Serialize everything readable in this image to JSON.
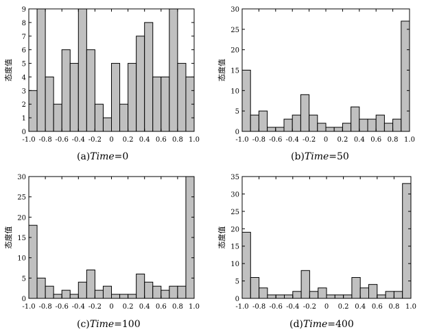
{
  "chart_data": [
    {
      "type": "bar",
      "title": "",
      "ylabel": "态度值",
      "xlabel": "",
      "xlim": [
        -1.0,
        1.0
      ],
      "ylim": [
        0,
        9
      ],
      "yticks": [
        0,
        1,
        2,
        3,
        4,
        5,
        6,
        7,
        8,
        9
      ],
      "xticks": [
        "-1.0",
        "-0.8",
        "-0.6",
        "-0.4",
        "-0.2",
        "0",
        "0.2",
        "0.4",
        "0.6",
        "0.8",
        "1.0"
      ],
      "bin_edges_start": -0.95,
      "bin_width": 0.1,
      "values": [
        3,
        9,
        4,
        2,
        6,
        5,
        9,
        6,
        2,
        1,
        5,
        2,
        5,
        7,
        8,
        4,
        4,
        9,
        5,
        4
      ],
      "caption": {
        "label": "(a)",
        "var": "Time",
        "value": "=0"
      }
    },
    {
      "type": "bar",
      "title": "",
      "ylabel": "态度值",
      "xlabel": "",
      "xlim": [
        -1.0,
        1.0
      ],
      "ylim": [
        0,
        30
      ],
      "yticks": [
        0,
        5,
        10,
        15,
        20,
        25,
        30
      ],
      "xticks": [
        "-1.0",
        "-0.8",
        "-0.6",
        "-0.4",
        "-0.2",
        "0",
        "0.2",
        "0.4",
        "0.6",
        "0.8",
        "1.0"
      ],
      "bin_edges_start": -0.95,
      "bin_width": 0.1,
      "values": [
        15,
        4,
        5,
        1,
        1,
        3,
        4,
        9,
        4,
        2,
        1,
        1,
        2,
        6,
        3,
        3,
        4,
        2,
        3,
        27
      ],
      "caption": {
        "label": "(b)",
        "var": "Time",
        "value": "=50"
      }
    },
    {
      "type": "bar",
      "title": "",
      "ylabel": "态度值",
      "xlabel": "",
      "xlim": [
        -1.0,
        1.0
      ],
      "ylim": [
        0,
        30
      ],
      "yticks": [
        0,
        5,
        10,
        15,
        20,
        25,
        30
      ],
      "xticks": [
        "-1.0",
        "-0.8",
        "-0.6",
        "-0.4",
        "-0.2",
        "0",
        "0.2",
        "0.4",
        "0.6",
        "0.8",
        "1.0"
      ],
      "bin_edges_start": -0.95,
      "bin_width": 0.1,
      "values": [
        18,
        5,
        3,
        1,
        2,
        1,
        4,
        7,
        2,
        3,
        1,
        1,
        1,
        6,
        4,
        3,
        2,
        3,
        3,
        30
      ],
      "caption": {
        "label": "(c)",
        "var": "Time",
        "value": "=100"
      }
    },
    {
      "type": "bar",
      "title": "",
      "ylabel": "态度值",
      "xlabel": "",
      "xlim": [
        -1.0,
        1.0
      ],
      "ylim": [
        0,
        35
      ],
      "yticks": [
        0,
        5,
        10,
        15,
        20,
        25,
        30,
        35
      ],
      "xticks": [
        "-1.0",
        "-0.8",
        "-0.6",
        "-0.4",
        "-0.2",
        "0",
        "0.2",
        "0.4",
        "0.6",
        "0.8",
        "1.0"
      ],
      "bin_edges_start": -0.95,
      "bin_width": 0.1,
      "values": [
        19,
        6,
        3,
        1,
        1,
        1,
        2,
        8,
        2,
        3,
        1,
        1,
        1,
        6,
        3,
        4,
        1,
        2,
        2,
        33
      ],
      "caption": {
        "label": "(d)",
        "var": "Time",
        "value": "=400"
      }
    }
  ],
  "style": {
    "bar_fill": "#c0c0c0",
    "bar_stroke": "#000000",
    "axis_color": "#000000"
  }
}
